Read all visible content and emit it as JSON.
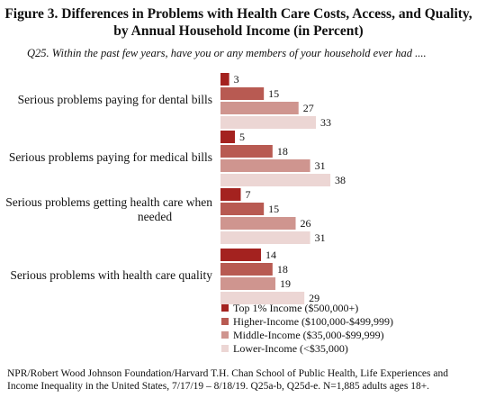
{
  "title": "Figure 3. Differences in Problems with Health Care Costs, Access, and Quality, by Annual Household Income (in Percent)",
  "question": "Q25. Within the past few years, have you or any members of your household ever had ....",
  "source": "NPR/Robert Wood Johnson Foundation/Harvard T.H. Chan School of Public Health, Life Experiences and Income Inequality in the United States, 7/17/19 – 8/18/19. Q25a-b, Q25d-e. N=1,885 adults ages 18+.",
  "colors": [
    "#a4221f",
    "#b85a52",
    "#cf958f",
    "#ecd6d4"
  ],
  "chart_data": {
    "type": "bar",
    "orientation": "horizontal",
    "categories": [
      [
        "Serious problems paying for dental bills"
      ],
      [
        "Serious problems paying for medical bills"
      ],
      [
        "Serious problems getting health care when",
        "needed"
      ],
      [
        "Serious problems with health care quality"
      ]
    ],
    "series": [
      {
        "name": "Top 1% Income ($500,000+)",
        "values": [
          3,
          5,
          7,
          14
        ]
      },
      {
        "name": "Higher-Income ($100,000-$499,999)",
        "values": [
          15,
          18,
          15,
          18
        ]
      },
      {
        "name": "Middle-Income ($35,000-$99,999)",
        "values": [
          27,
          31,
          26,
          19
        ]
      },
      {
        "name": "Lower-Income (<$35,000)",
        "values": [
          33,
          38,
          31,
          29
        ]
      }
    ],
    "xlim": [
      0,
      40
    ],
    "grid": false,
    "legend": "bottom"
  }
}
